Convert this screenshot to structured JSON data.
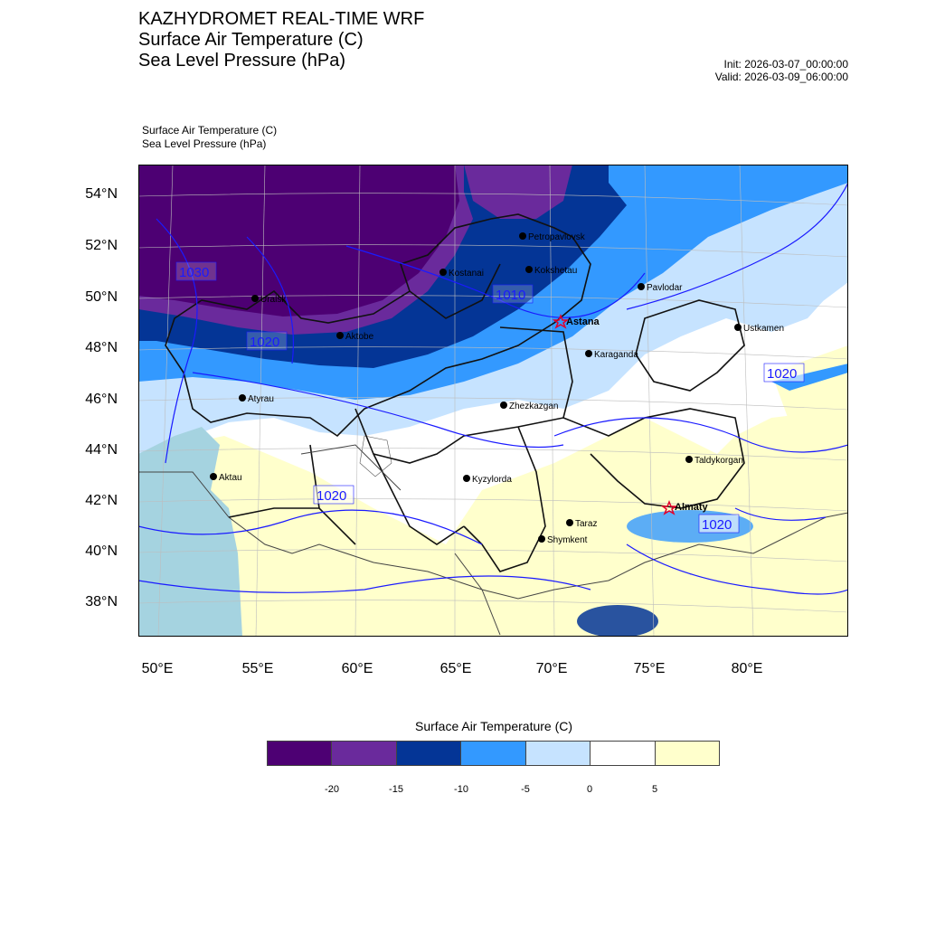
{
  "header": {
    "title_lines": [
      "KAZHYDROMET REAL-TIME WRF",
      "Surface Air Temperature  (C)",
      "Sea Level Pressure  (hPa)"
    ],
    "init": "Init: 2026-03-07_00:00:00",
    "valid": "Valid: 2026-03-09_06:00:00",
    "sub_lines": [
      "Surface Air Temperature   (C)",
      "Sea Level Pressure   (hPa)"
    ]
  },
  "map": {
    "lat_labels": [
      "54°N",
      "52°N",
      "50°N",
      "48°N",
      "46°N",
      "44°N",
      "42°N",
      "40°N",
      "38°N"
    ],
    "lon_labels": [
      "50°E",
      "55°E",
      "60°E",
      "65°E",
      "70°E",
      "75°E",
      "80°E"
    ],
    "cities": [
      {
        "name": "Petropavlovsk",
        "marker": "dot"
      },
      {
        "name": "Kostanai",
        "marker": "dot"
      },
      {
        "name": "Kokshetau",
        "marker": "dot"
      },
      {
        "name": "Pavlodar",
        "marker": "dot"
      },
      {
        "name": "Uralsk",
        "marker": "dot"
      },
      {
        "name": "Astana",
        "marker": "star"
      },
      {
        "name": "Ustkamen",
        "marker": "dot"
      },
      {
        "name": "Aktobe",
        "marker": "dot"
      },
      {
        "name": "Karaganda",
        "marker": "dot"
      },
      {
        "name": "Atyrau",
        "marker": "dot"
      },
      {
        "name": "Zhezkazgan",
        "marker": "dot"
      },
      {
        "name": "Aktau",
        "marker": "dot"
      },
      {
        "name": "Kyzylorda",
        "marker": "dot"
      },
      {
        "name": "Taldykorgan",
        "marker": "dot"
      },
      {
        "name": "Almaty",
        "marker": "star"
      },
      {
        "name": "Taraz",
        "marker": "dot"
      },
      {
        "name": "Shymkent",
        "marker": "dot"
      }
    ],
    "isobar_labels": [
      "1030",
      "1020",
      "1010",
      "1020",
      "1020",
      "1020"
    ],
    "sea_color": "#a5d3e0",
    "isobar_color": "#1a1aff",
    "star_color": "#e4002b"
  },
  "colorbar": {
    "title": "Surface Air Temperature (C)",
    "colors": [
      "#4d0073",
      "#6a2a9c",
      "#043596",
      "#3399ff",
      "#c6e3ff",
      "#ffffff",
      "#ffffcc"
    ],
    "ticks": [
      "-20",
      "-15",
      "-10",
      "-5",
      "0",
      "5"
    ]
  }
}
